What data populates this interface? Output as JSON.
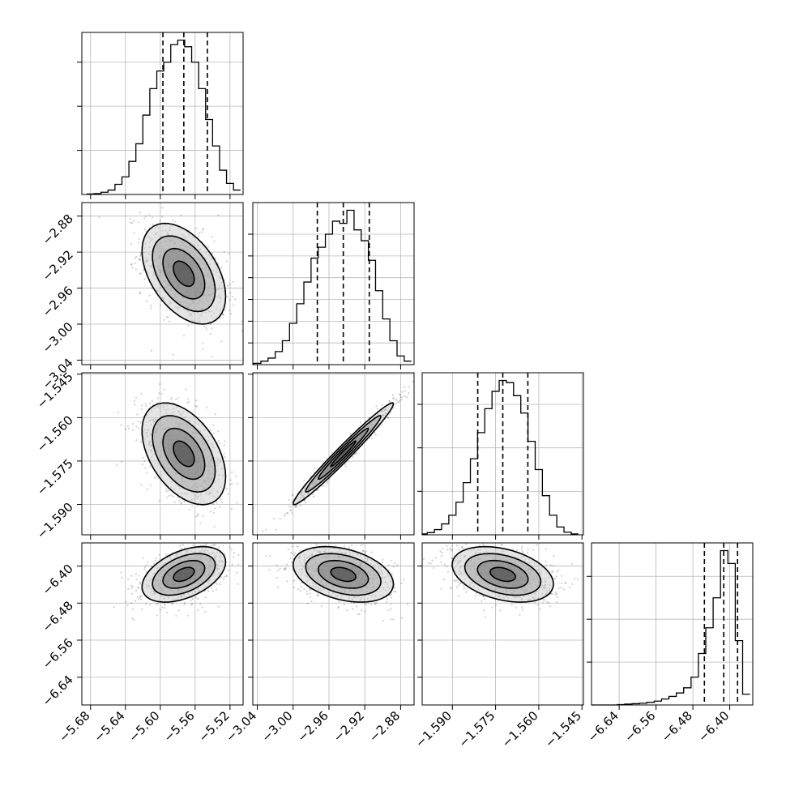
{
  "chart_data": {
    "type": "corner",
    "parameters": [
      {
        "id": "p1",
        "ticks": [
          -5.68,
          -5.64,
          -5.6,
          -5.56,
          -5.52
        ],
        "tick_labels": [
          "−5.68",
          "−5.64",
          "−5.60",
          "−5.56",
          "−5.52"
        ],
        "lim": [
          -5.69,
          -5.505
        ],
        "mean": -5.573,
        "sd": 0.024,
        "quantiles": [
          -5.597,
          -5.573,
          -5.546
        ],
        "hist_x": [
          -5.68,
          -5.672,
          -5.664,
          -5.656,
          -5.648,
          -5.64,
          -5.632,
          -5.624,
          -5.616,
          -5.608,
          -5.6,
          -5.592,
          -5.584,
          -5.576,
          -5.568,
          -5.56,
          -5.552,
          -5.544,
          -5.536,
          -5.528,
          -5.52,
          -5.512
        ],
        "hist_counts": [
          1,
          2,
          5,
          10,
          23,
          40,
          75,
          115,
          180,
          240,
          280,
          300,
          340,
          350,
          335,
          300,
          240,
          170,
          110,
          55,
          25,
          10
        ]
      },
      {
        "id": "p2",
        "ticks": [
          -3.04,
          -3.0,
          -2.96,
          -2.92,
          -2.88
        ],
        "tick_labels": [
          "−3.04",
          "−3.00",
          "−2.96",
          "−2.92",
          "−2.88"
        ],
        "lim": [
          -3.045,
          -2.865
        ],
        "mean": -2.944,
        "sd": 0.028,
        "quantiles": [
          -2.973,
          -2.944,
          -2.915
        ],
        "hist_x": [
          -3.04,
          -3.032,
          -3.024,
          -3.016,
          -3.008,
          -3.0,
          -2.992,
          -2.984,
          -2.976,
          -2.968,
          -2.96,
          -2.952,
          -2.944,
          -2.936,
          -2.928,
          -2.92,
          -2.912,
          -2.904,
          -2.896,
          -2.888,
          -2.88,
          -2.872
        ],
        "hist_counts": [
          3,
          8,
          15,
          30,
          55,
          95,
          140,
          190,
          245,
          270,
          300,
          330,
          325,
          355,
          310,
          285,
          240,
          170,
          105,
          55,
          20,
          8
        ]
      },
      {
        "id": "p3",
        "ticks": [
          -1.59,
          -1.575,
          -1.56,
          -1.545
        ],
        "tick_labels": [
          "−1.590",
          "−1.575",
          "−1.560",
          "−1.545"
        ],
        "lim": [
          -1.6005,
          -1.5445
        ],
        "mean": -1.5725,
        "sd": 0.0088,
        "quantiles": [
          -1.5812,
          -1.5725,
          -1.5638
        ],
        "hist_x": [
          -1.6,
          -1.5975,
          -1.595,
          -1.5925,
          -1.59,
          -1.5875,
          -1.585,
          -1.5825,
          -1.58,
          -1.5775,
          -1.575,
          -1.5725,
          -1.57,
          -1.5675,
          -1.565,
          -1.5625,
          -1.56,
          -1.5575,
          -1.555,
          -1.5525,
          -1.55,
          -1.5475
        ],
        "hist_counts": [
          2,
          5,
          12,
          25,
          45,
          75,
          120,
          175,
          235,
          290,
          330,
          355,
          350,
          320,
          280,
          215,
          150,
          90,
          45,
          18,
          6,
          2
        ]
      },
      {
        "id": "p4",
        "ticks": [
          -6.64,
          -6.56,
          -6.48,
          -6.4
        ],
        "tick_labels": [
          "−6.64",
          "−6.56",
          "−6.48",
          "−6.40"
        ],
        "lim": [
          -6.7,
          -6.35
        ],
        "mean": -6.418,
        "sd": 0.03,
        "quantiles": [
          -6.455,
          -6.413,
          -6.383
        ],
        "hist_x": [
          -6.7,
          -6.684,
          -6.668,
          -6.652,
          -6.636,
          -6.62,
          -6.604,
          -6.588,
          -6.572,
          -6.556,
          -6.54,
          -6.524,
          -6.508,
          -6.492,
          -6.476,
          -6.46,
          -6.444,
          -6.428,
          -6.412,
          -6.396,
          -6.38,
          -6.364
        ],
        "hist_counts": [
          0,
          0,
          0,
          0,
          1,
          2,
          3,
          4,
          6,
          9,
          14,
          20,
          28,
          40,
          65,
          120,
          180,
          250,
          360,
          330,
          150,
          25
        ]
      }
    ],
    "correlations": [
      [
        1,
        -0.45,
        -0.45,
        0.45
      ],
      [
        -0.45,
        1,
        0.98,
        -0.35
      ],
      [
        -0.45,
        0.98,
        1,
        -0.35
      ],
      [
        0.45,
        -0.35,
        -0.35,
        1
      ]
    ],
    "histogram_y_ticks": [
      [
        100,
        200,
        300
      ],
      [
        50,
        100,
        150,
        200,
        250,
        300
      ],
      [
        100,
        200,
        300
      ],
      [
        100,
        200,
        300
      ]
    ],
    "grid": true
  }
}
